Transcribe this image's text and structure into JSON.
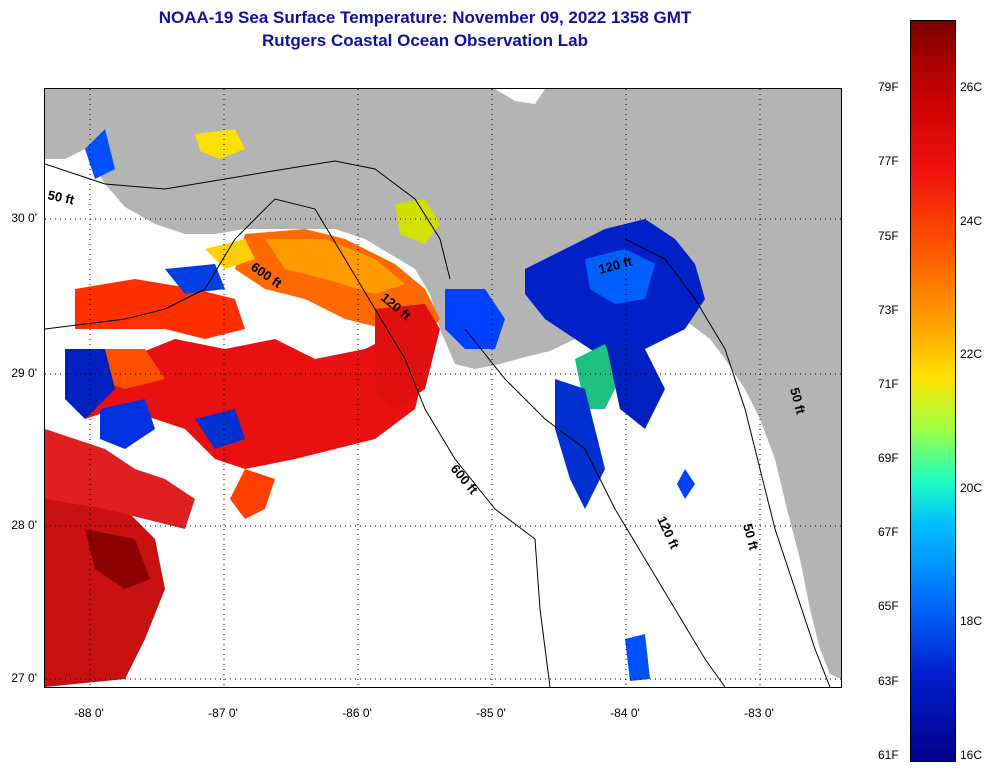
{
  "title": {
    "line1": "NOAA-19 Sea Surface Temperature:  November 09, 2022 1358 GMT",
    "line2": "Rutgers Coastal Ocean Observation Lab"
  },
  "map": {
    "lat_labels": [
      "30 0'",
      "29 0'",
      "28 0'",
      "27 0'"
    ],
    "lon_labels": [
      "-88 0'",
      "-87 0'",
      "-86 0'",
      "-85 0'",
      "-84 0'",
      "-83 0'"
    ],
    "contour_labels": [
      "50 ft",
      "600 ft",
      "120 ft",
      "600 ft",
      "120 ft",
      "120 ft",
      "50 ft",
      "50 ft"
    ],
    "land_color": "#b4b4b4",
    "cloud_color": "#ffffff"
  },
  "colorbar": {
    "fahrenheit": [
      "79F",
      "77F",
      "75F",
      "73F",
      "71F",
      "69F",
      "67F",
      "65F",
      "63F",
      "61F"
    ],
    "celsius": [
      "26C",
      "24C",
      "22C",
      "20C",
      "18C",
      "16C"
    ],
    "min_c": 16,
    "max_c": 27
  }
}
